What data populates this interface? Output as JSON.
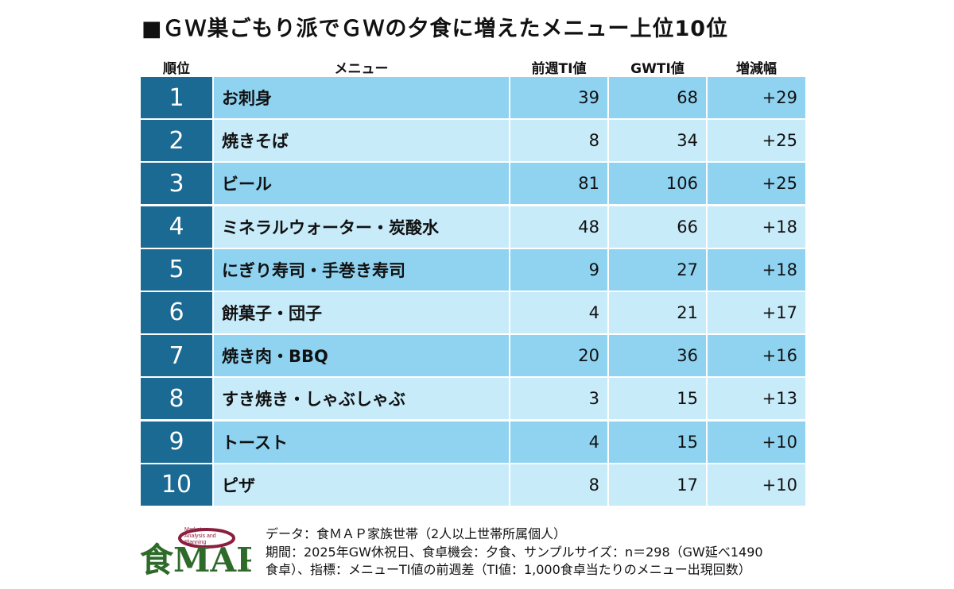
{
  "title": "■ＧＷ巣ごもり派でＧＷの夕食に増えたメニュー上位10位",
  "headers": {
    "rank": "順位",
    "menu": "メニュー",
    "prev": "前週TI値",
    "gw": "GWTI値",
    "diff": "増減幅"
  },
  "chart_data": {
    "type": "table",
    "columns": [
      "順位",
      "メニュー",
      "前週TI値",
      "GWTI値",
      "増減幅"
    ],
    "rows": [
      {
        "rank": "1",
        "menu": "お刺身",
        "prev": "39",
        "gw": "68",
        "diff": "+29"
      },
      {
        "rank": "2",
        "menu": "焼きそば",
        "prev": "8",
        "gw": "34",
        "diff": "+25"
      },
      {
        "rank": "3",
        "menu": "ビール",
        "prev": "81",
        "gw": "106",
        "diff": "+25"
      },
      {
        "rank": "4",
        "menu": "ミネラルウォーター・炭酸水",
        "prev": "48",
        "gw": "66",
        "diff": "+18"
      },
      {
        "rank": "5",
        "menu": "にぎり寿司・手巻き寿司",
        "prev": "9",
        "gw": "27",
        "diff": "+18"
      },
      {
        "rank": "6",
        "menu": "餅菓子・団子",
        "prev": "4",
        "gw": "21",
        "diff": "+17"
      },
      {
        "rank": "7",
        "menu": "焼き肉・BBQ",
        "prev": "20",
        "gw": "36",
        "diff": "+16"
      },
      {
        "rank": "8",
        "menu": "すき焼き・しゃぶしゃぶ",
        "prev": "3",
        "gw": "15",
        "diff": "+13"
      },
      {
        "rank": "9",
        "menu": "トースト",
        "prev": "4",
        "gw": "15",
        "diff": "+10"
      },
      {
        "rank": "10",
        "menu": "ピザ",
        "prev": "8",
        "gw": "17",
        "diff": "+10"
      }
    ]
  },
  "logo": {
    "main": "食MAP",
    "sub1": "Market",
    "sub2": "Analysis and",
    "sub3": "Planning",
    "registered": "®"
  },
  "notes": [
    "データ：食ＭＡＰ家族世帯（2人以上世帯所属個人）",
    "期間：2025年GW休祝日、食卓機会：夕食、サンプルサイズ：n＝298（GW延べ1490",
    "食卓）、指標：メニューTI値の前週差（TI値：1,000食卓当たりのメニュー出現回数）"
  ],
  "colors": {
    "rank_bg": "#1b6a94",
    "row_dark": "#8fd3f1",
    "row_light": "#c8ebf9",
    "logo_green": "#2e6b2a",
    "logo_red": "#8b1e3f"
  }
}
